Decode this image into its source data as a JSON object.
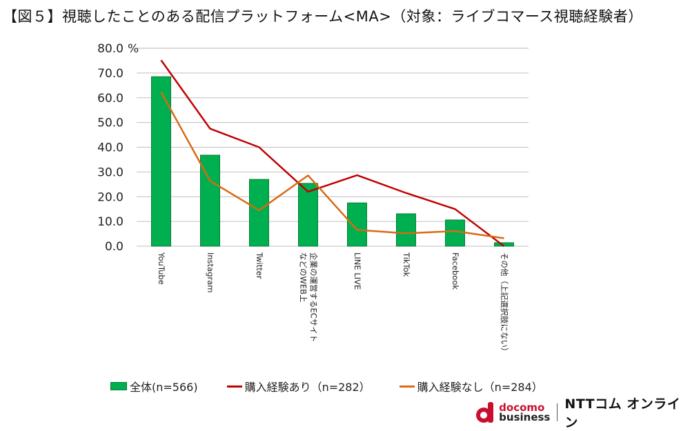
{
  "title": "【図５】視聴したことのある配信プラットフォーム<MA>（対象：ライブコマース視聴経験者）",
  "chart_data": {
    "type": "bar",
    "title": "【図５】視聴したことのある配信プラットフォーム<MA>（対象：ライブコマース視聴経験者）",
    "xlabel": "",
    "ylabel": "%",
    "ylim": [
      0,
      80
    ],
    "yticks": [
      "0.0",
      "10.0",
      "20.0",
      "30.0",
      "40.0",
      "50.0",
      "60.0",
      "70.0",
      "80.0"
    ],
    "y_unit_label": "%",
    "grid": true,
    "legend_position": "bottom",
    "categories": [
      "YouTube",
      "Instagram",
      "Twitter",
      "企業の運営するECサイトなどのWEB上",
      "LINE LIVE",
      "TikTok",
      "Facebook",
      "その他（上記選択肢にない）"
    ],
    "category_label_lines": [
      [
        "YouTube"
      ],
      [
        "Instagram"
      ],
      [
        "Twitter"
      ],
      [
        "企業の運営するECサイト",
        "などのWEB上"
      ],
      [
        "LINE LIVE"
      ],
      [
        "TikTok"
      ],
      [
        "Facebook"
      ],
      [
        "その他（上記選択肢にない）"
      ]
    ],
    "series": [
      {
        "name": "全体(n=566)",
        "kind": "bar",
        "color": "#00b050",
        "values": [
          68.5,
          36.8,
          27.0,
          25.4,
          17.5,
          13.1,
          10.6,
          1.4
        ]
      },
      {
        "name": "購入経験あり（n=282）",
        "kind": "line",
        "color": "#c00000",
        "values": [
          75.2,
          47.5,
          40.0,
          22.0,
          28.7,
          21.5,
          15.0,
          0.0
        ]
      },
      {
        "name": "購入経験なし（n=284）",
        "kind": "line",
        "color": "#d86a14",
        "values": [
          62.3,
          26.4,
          14.5,
          28.6,
          6.6,
          5.2,
          6.1,
          3.2
        ]
      }
    ]
  },
  "logo": {
    "mark_word1": "docomo",
    "mark_word2": "business",
    "brand": "NTTコム オンライン"
  }
}
